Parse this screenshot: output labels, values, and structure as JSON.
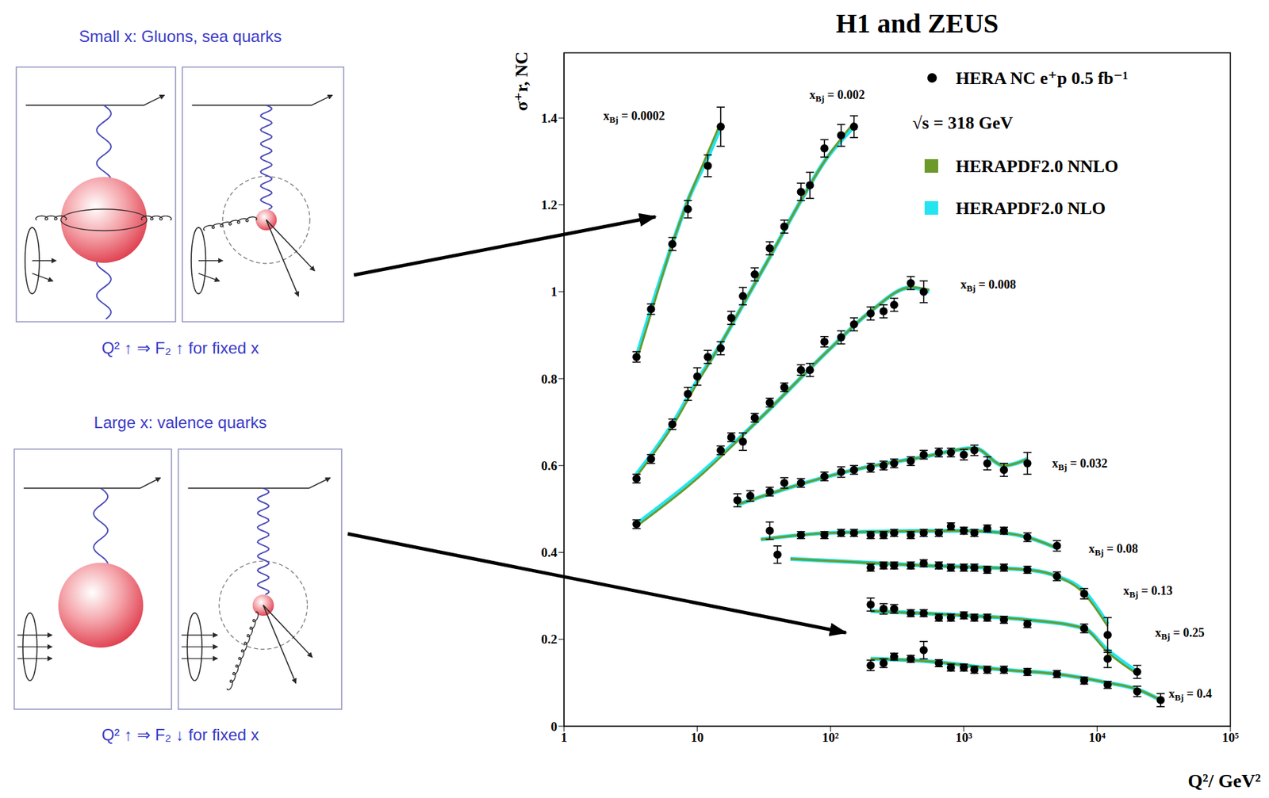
{
  "chart_data": {
    "type": "scatter",
    "title": "H1 and ZEUS",
    "x_label": "Q²/ GeV²",
    "y_label": "σ⁺r, NC",
    "log": "x",
    "xlim": [
      1,
      100000
    ],
    "xticks": [
      1,
      10,
      {
        "value": 100,
        "label": "10²"
      },
      {
        "value": 1000,
        "label": "10³"
      },
      {
        "value": 10000,
        "label": "10⁴"
      },
      {
        "value": 100000,
        "label": "10⁵"
      }
    ],
    "ylim": [
      0,
      1.55
    ],
    "yticks": [
      0,
      0.2,
      0.4,
      0.6,
      0.8,
      1,
      1.2,
      1.4
    ],
    "grid": false,
    "legend": "upper right",
    "annotations": [
      "√s = 318 GeV"
    ],
    "bin_labels": [
      "xBj = 0.0002",
      "xBj = 0.002",
      "xBj = 0.008",
      "xBj = 0.032",
      "xBj = 0.08",
      "xBj = 0.13",
      "xBj = 0.25",
      "xBj = 0.4"
    ],
    "series": [
      {
        "name": "HERA NC e⁺p 0.5 fb⁻¹",
        "type": "scatter",
        "color": "#000000",
        "marker": "circle",
        "points": [
          {
            "x": [
              3.5,
              4.5,
              6.5,
              8.5,
              12,
              15
            ],
            "values": [
              0.85,
              0.96,
              1.11,
              1.19,
              1.29,
              1.38
            ],
            "errors": [
              0.012,
              0.012,
              0.015,
              0.02,
              0.025,
              0.045
            ]
          },
          {
            "x": [
              3.5,
              4.5,
              6.5,
              8.5,
              10,
              12,
              15,
              18,
              22,
              27,
              35,
              45,
              60,
              70,
              90,
              120,
              150
            ],
            "values": [
              0.57,
              0.615,
              0.695,
              0.765,
              0.805,
              0.85,
              0.87,
              0.94,
              0.99,
              1.04,
              1.1,
              1.15,
              1.23,
              1.245,
              1.33,
              1.36,
              1.38
            ],
            "errors": [
              0.01,
              0.01,
              0.012,
              0.015,
              0.02,
              0.015,
              0.015,
              0.015,
              0.02,
              0.015,
              0.015,
              0.015,
              0.02,
              0.03,
              0.02,
              0.025,
              0.025
            ]
          },
          {
            "x": [
              3.5,
              15,
              18,
              22,
              27,
              35,
              45,
              60,
              70,
              90,
              120,
              150,
              200,
              250,
              300,
              400,
              500
            ],
            "values": [
              0.465,
              0.635,
              0.665,
              0.655,
              0.71,
              0.745,
              0.78,
              0.82,
              0.82,
              0.885,
              0.895,
              0.925,
              0.95,
              0.955,
              0.97,
              1.02,
              1.0
            ],
            "errors": [
              0.01,
              0.01,
              0.01,
              0.02,
              0.01,
              0.01,
              0.01,
              0.012,
              0.015,
              0.012,
              0.015,
              0.015,
              0.015,
              0.015,
              0.015,
              0.015,
              0.025
            ]
          },
          {
            "x": [
              20,
              25,
              35,
              45,
              60,
              90,
              120,
              150,
              200,
              250,
              300,
              400,
              500,
              650,
              800,
              1000,
              1200,
              1500,
              2000,
              3000
            ],
            "values": [
              0.52,
              0.53,
              0.54,
              0.56,
              0.56,
              0.575,
              0.585,
              0.59,
              0.595,
              0.6,
              0.605,
              0.61,
              0.625,
              0.63,
              0.63,
              0.625,
              0.635,
              0.605,
              0.59,
              0.605
            ],
            "errors": [
              0.015,
              0.012,
              0.01,
              0.012,
              0.01,
              0.01,
              0.012,
              0.01,
              0.01,
              0.01,
              0.01,
              0.01,
              0.01,
              0.01,
              0.01,
              0.012,
              0.012,
              0.015,
              0.015,
              0.025
            ]
          },
          {
            "x": [
              35,
              60,
              90,
              120,
              150,
              200,
              250,
              300,
              400,
              500,
              650,
              800,
              1000,
              1200,
              1500,
              2000,
              3000,
              5000
            ],
            "values": [
              0.45,
              0.44,
              0.44,
              0.445,
              0.445,
              0.44,
              0.44,
              0.445,
              0.44,
              0.445,
              0.445,
              0.46,
              0.45,
              0.445,
              0.455,
              0.45,
              0.435,
              0.415
            ],
            "errors": [
              0.02,
              0.008,
              0.008,
              0.008,
              0.008,
              0.008,
              0.008,
              0.008,
              0.008,
              0.008,
              0.008,
              0.008,
              0.008,
              0.008,
              0.008,
              0.008,
              0.01,
              0.012
            ]
          },
          {
            "x": [
              40,
              200,
              250,
              300,
              400,
              500,
              650,
              800,
              1000,
              1200,
              1500,
              2000,
              3000,
              5000,
              8000,
              12000
            ],
            "values": [
              0.395,
              0.365,
              0.37,
              0.37,
              0.37,
              0.375,
              0.37,
              0.365,
              0.365,
              0.365,
              0.36,
              0.365,
              0.36,
              0.345,
              0.305,
              0.21
            ],
            "errors": [
              0.02,
              0.008,
              0.008,
              0.008,
              0.008,
              0.008,
              0.008,
              0.008,
              0.008,
              0.008,
              0.008,
              0.008,
              0.008,
              0.01,
              0.012,
              0.04
            ]
          },
          {
            "x": [
              200,
              250,
              300,
              400,
              500,
              650,
              800,
              1000,
              1200,
              1500,
              2000,
              3000,
              8000,
              12000,
              20000
            ],
            "values": [
              0.28,
              0.27,
              0.27,
              0.26,
              0.26,
              0.25,
              0.25,
              0.255,
              0.25,
              0.25,
              0.245,
              0.235,
              0.225,
              0.155,
              0.125
            ],
            "errors": [
              0.015,
              0.012,
              0.01,
              0.008,
              0.008,
              0.008,
              0.008,
              0.008,
              0.008,
              0.008,
              0.008,
              0.008,
              0.01,
              0.02,
              0.015
            ]
          },
          {
            "x": [
              200,
              250,
              300,
              400,
              500,
              650,
              800,
              1000,
              1200,
              1500,
              2000,
              3000,
              5000,
              8000,
              12000,
              20000,
              30000
            ],
            "values": [
              0.14,
              0.145,
              0.16,
              0.155,
              0.175,
              0.145,
              0.135,
              0.135,
              0.13,
              0.13,
              0.13,
              0.125,
              0.12,
              0.105,
              0.095,
              0.08,
              0.06
            ],
            "errors": [
              0.012,
              0.01,
              0.008,
              0.008,
              0.02,
              0.008,
              0.008,
              0.008,
              0.008,
              0.008,
              0.008,
              0.008,
              0.008,
              0.008,
              0.008,
              0.012,
              0.015
            ]
          }
        ]
      },
      {
        "name": "HERAPDF2.0 NNLO",
        "type": "line",
        "color": "#6b9a2a",
        "line_style": "solid",
        "curves": [
          {
            "x": [
              3.5,
              4.5,
              6.5,
              8.5,
              12,
              15
            ],
            "values": [
              0.84,
              0.95,
              1.11,
              1.21,
              1.32,
              1.39
            ]
          },
          {
            "x": [
              3.5,
              6.5,
              10,
              15,
              22,
              35,
              60,
              90,
              150
            ],
            "values": [
              0.575,
              0.69,
              0.79,
              0.88,
              0.97,
              1.08,
              1.21,
              1.3,
              1.39
            ]
          },
          {
            "x": [
              3.5,
              10,
              30,
              100,
              200,
              400,
              550
            ],
            "values": [
              0.46,
              0.57,
              0.71,
              0.87,
              0.955,
              1.01,
              1.005
            ]
          },
          {
            "x": [
              20,
              50,
              150,
              500,
              1200,
              2000,
              3000
            ],
            "values": [
              0.51,
              0.55,
              0.59,
              0.62,
              0.64,
              0.6,
              0.615
            ]
          },
          {
            "x": [
              30,
              100,
              1000,
              2000,
              3000,
              5000
            ],
            "values": [
              0.43,
              0.445,
              0.45,
              0.445,
              0.435,
              0.41
            ]
          },
          {
            "x": [
              50,
              500,
              3000,
              5000,
              8000,
              12000
            ],
            "values": [
              0.385,
              0.37,
              0.36,
              0.345,
              0.305,
              0.23
            ]
          },
          {
            "x": [
              200,
              1000,
              3000,
              8000,
              12000,
              20000
            ],
            "values": [
              0.265,
              0.255,
              0.245,
              0.225,
              0.17,
              0.12
            ]
          },
          {
            "x": [
              200,
              500,
              2000,
              5000,
              12000,
              20000,
              30000
            ],
            "values": [
              0.155,
              0.15,
              0.13,
              0.12,
              0.1,
              0.085,
              0.06
            ]
          }
        ]
      },
      {
        "name": "HERAPDF2.0 NLO",
        "type": "line",
        "color": "#22e5f0",
        "line_style": "solid",
        "curves": [
          {
            "x": [
              3.5,
              4.5,
              6.5,
              8.5,
              12,
              15
            ],
            "values": [
              0.85,
              0.96,
              1.11,
              1.21,
              1.31,
              1.38
            ]
          },
          {
            "x": [
              3.5,
              6.5,
              10,
              15,
              22,
              35,
              60,
              90,
              150
            ],
            "values": [
              0.58,
              0.695,
              0.795,
              0.88,
              0.97,
              1.08,
              1.21,
              1.3,
              1.38
            ]
          },
          {
            "x": [
              3.5,
              10,
              30,
              100,
              200,
              400,
              550
            ],
            "values": [
              0.465,
              0.575,
              0.71,
              0.87,
              0.955,
              1.01,
              1.0
            ]
          },
          {
            "x": [
              20,
              50,
              150,
              500,
              1200,
              2000,
              3000
            ],
            "values": [
              0.51,
              0.55,
              0.59,
              0.62,
              0.64,
              0.6,
              0.615
            ]
          },
          {
            "x": [
              30,
              100,
              1000,
              2000,
              3000,
              5000
            ],
            "values": [
              0.43,
              0.445,
              0.45,
              0.445,
              0.435,
              0.41
            ]
          },
          {
            "x": [
              50,
              500,
              3000,
              5000,
              8000,
              12000
            ],
            "values": [
              0.385,
              0.37,
              0.36,
              0.345,
              0.31,
              0.235
            ]
          },
          {
            "x": [
              200,
              1000,
              3000,
              8000,
              12000,
              20000
            ],
            "values": [
              0.265,
              0.255,
              0.245,
              0.225,
              0.175,
              0.125
            ]
          },
          {
            "x": [
              200,
              500,
              2000,
              5000,
              12000,
              20000,
              30000
            ],
            "values": [
              0.155,
              0.15,
              0.13,
              0.12,
              0.1,
              0.085,
              0.06
            ]
          }
        ]
      }
    ]
  },
  "diagram": {
    "panels": [
      {
        "title": "Small x: Gluons, sea quarks",
        "caption": "Q² ↑ ⇒ F₂ ↑ for fixed x"
      },
      {
        "title": "Large x: valence quarks",
        "caption": "Q² ↑ ⇒ F₂ ↓ for fixed x"
      }
    ]
  }
}
